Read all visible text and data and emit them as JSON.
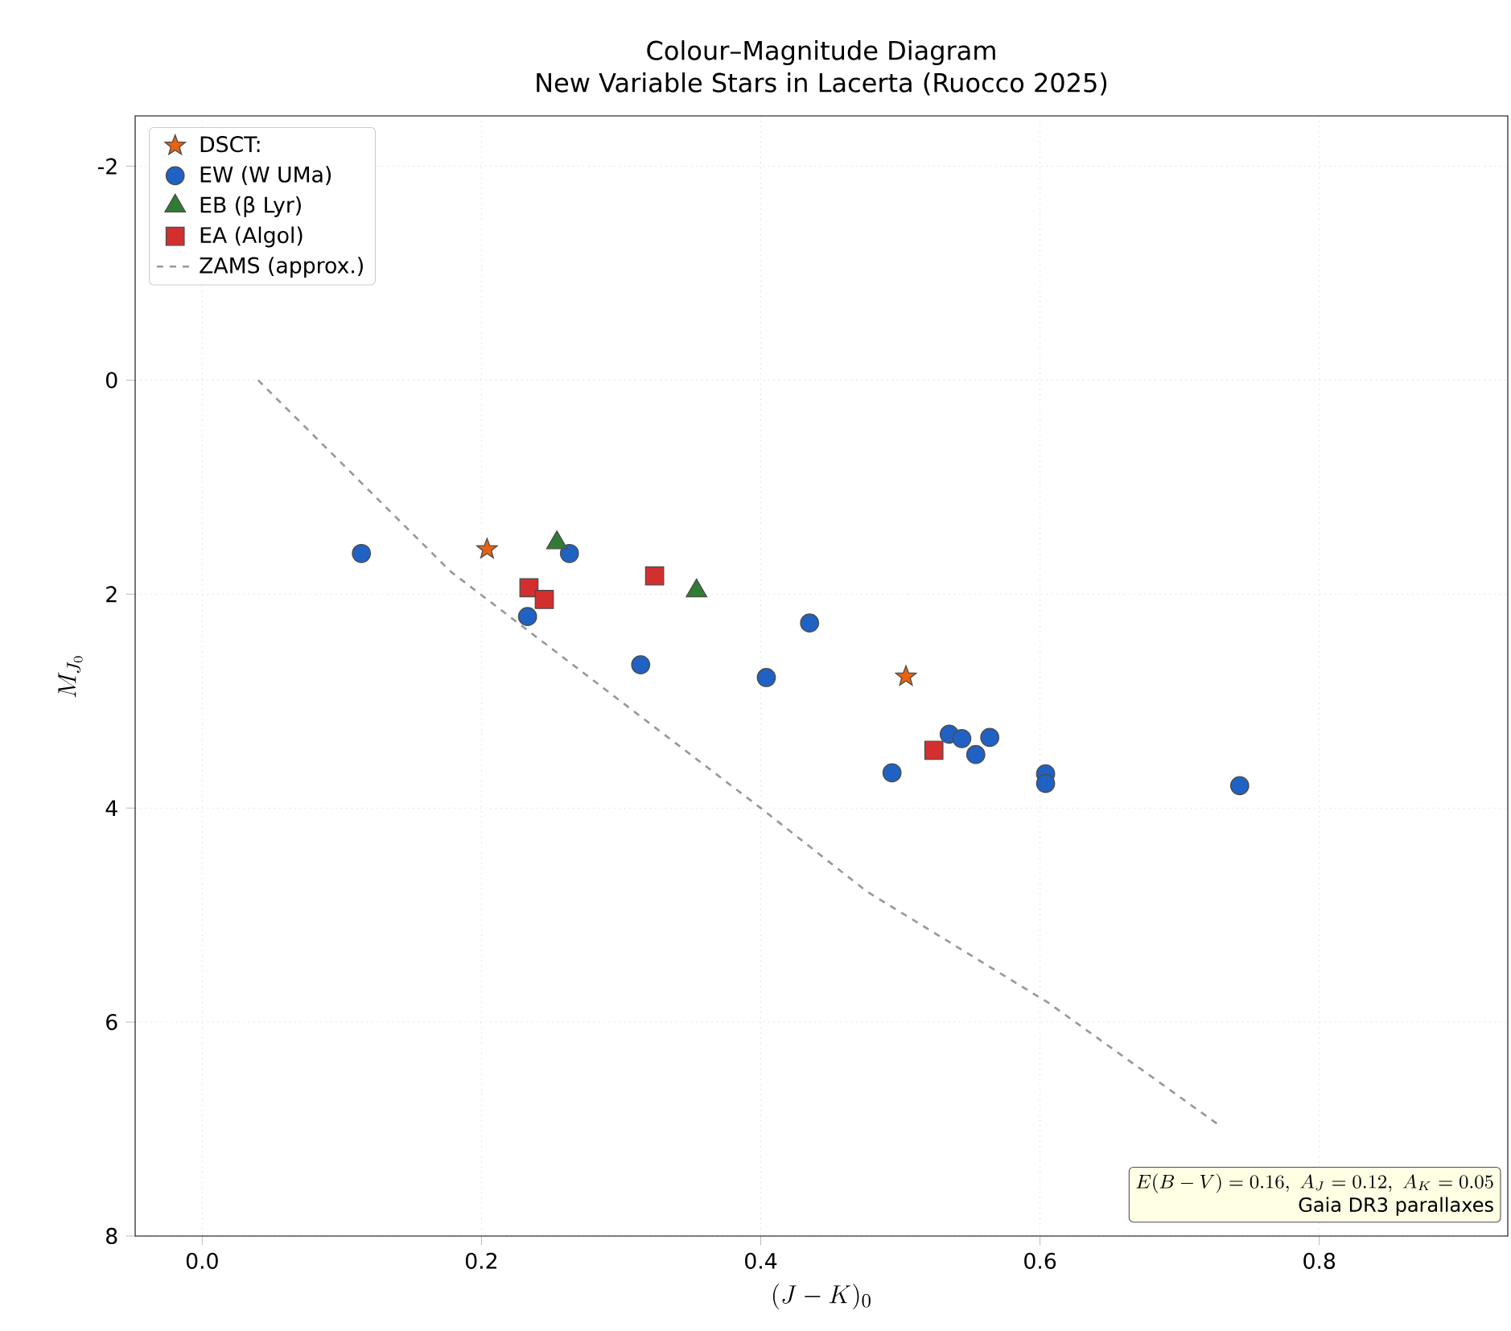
{
  "chart_data": {
    "type": "scatter",
    "title": "Colour–Magnitude Diagram",
    "subtitle": "New Variable Stars in Lacerta (Ruocco 2025)",
    "xlabel": "(J-K)_0",
    "ylabel": "M_{J_0}",
    "xlim": [
      -0.048,
      0.935
    ],
    "ylim": [
      8,
      -2.47
    ],
    "xticks": [
      {
        "value": 0,
        "label": "0.0"
      },
      0.2,
      0.4,
      0.6,
      0.8
    ],
    "yticks": [
      -2,
      0,
      2,
      4,
      6,
      8
    ],
    "grid": true,
    "legend": "top left",
    "series": [
      {
        "name": "DSCT:",
        "color": "#e8620f",
        "marker": "star",
        "x": [
          0.204,
          0.504
        ],
        "values": [
          1.58,
          2.77
        ]
      },
      {
        "name": "EW (W UMa)",
        "color": "#1f62c4",
        "marker": "circle",
        "x": [
          0.114,
          0.233,
          0.263,
          0.314,
          0.404,
          0.435,
          0.494,
          0.535,
          0.544,
          0.554,
          0.564,
          0.604,
          0.604,
          0.743
        ],
        "values": [
          1.62,
          2.21,
          1.62,
          2.66,
          2.78,
          2.27,
          3.67,
          3.31,
          3.35,
          3.5,
          3.34,
          3.68,
          3.77,
          3.79
        ]
      },
      {
        "name": "EB (β Lyr)",
        "color": "#2e7d32",
        "marker": "triangle",
        "x": [
          0.254,
          0.354
        ],
        "values": [
          1.52,
          1.97
        ]
      },
      {
        "name": "EA (Algol)",
        "color": "#d32f2f",
        "marker": "square",
        "x": [
          0.234,
          0.245,
          0.324,
          0.524
        ],
        "values": [
          1.94,
          2.05,
          1.83,
          3.46
        ]
      },
      {
        "name": "ZAMS (approx.)",
        "type": "line",
        "color": "#999999",
        "marker": "none",
        "line_style": "dashed",
        "x": [
          0.04,
          0.178,
          0.4,
          0.476,
          0.606,
          0.73
        ],
        "values": [
          0.0,
          1.79,
          4.0,
          4.78,
          5.82,
          6.98
        ]
      }
    ],
    "annotations": [
      "E(B-V)=0.16,\\ A_J=0.12,\\ A_K=0.05",
      "Gaia DR3 parallaxes"
    ]
  }
}
